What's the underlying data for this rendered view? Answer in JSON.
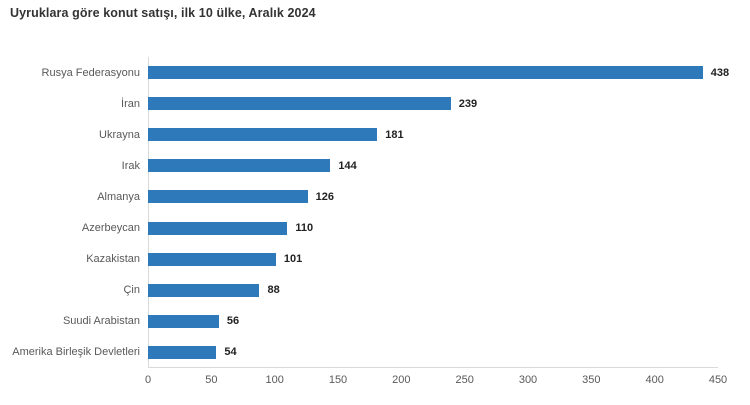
{
  "title": "Uyruklara göre konut satışı, ilk 10 ülke, Aralık 2024",
  "chart_data": {
    "type": "bar",
    "orientation": "horizontal",
    "title": "Uyruklara göre konut satışı, ilk 10 ülke, Aralık 2024",
    "categories": [
      "Rusya Federasyonu",
      "İran",
      "Ukrayna",
      "Irak",
      "Almanya",
      "Azerbeycan",
      "Kazakistan",
      "Çin",
      "Suudi Arabistan",
      "Amerika Birleşik Devletleri"
    ],
    "values": [
      438,
      239,
      181,
      144,
      126,
      110,
      101,
      88,
      56,
      54
    ],
    "xlabel": "",
    "ylabel": "",
    "xlim": [
      0,
      450
    ],
    "xticks": [
      0,
      50,
      100,
      150,
      200,
      250,
      300,
      350,
      400,
      450
    ],
    "grid": false,
    "legend": false,
    "bar_color": "#2e79b9",
    "axis_line_color": "#d9d9d9",
    "category_label_color": "#595959",
    "tick_label_color": "#595959",
    "value_label_color": "#222222",
    "title_color": "#333333"
  }
}
